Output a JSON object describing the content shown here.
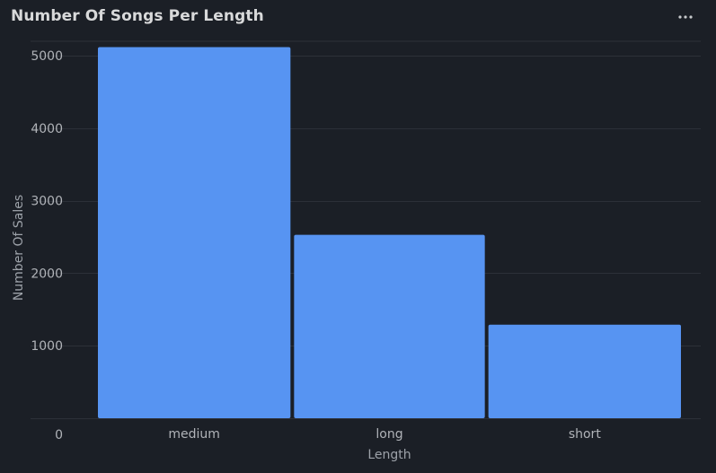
{
  "panel": {
    "title": "Number Of Songs Per Length",
    "menu_icon": "more-horizontal-icon"
  },
  "colors": {
    "background": "#1b1f26",
    "bar": "#5794f2",
    "grid": "#2c3038",
    "text": "#b0b3b8"
  },
  "chart_data": {
    "type": "bar",
    "categories": [
      "medium",
      "long",
      "short"
    ],
    "values": [
      5120,
      2530,
      1290
    ],
    "xlabel": "Length",
    "ylabel": "Number Of Sales",
    "ylim": [
      0,
      5200
    ],
    "yticks": [
      0,
      1000,
      2000,
      3000,
      4000,
      5000
    ],
    "grid": true,
    "legend": "none"
  }
}
